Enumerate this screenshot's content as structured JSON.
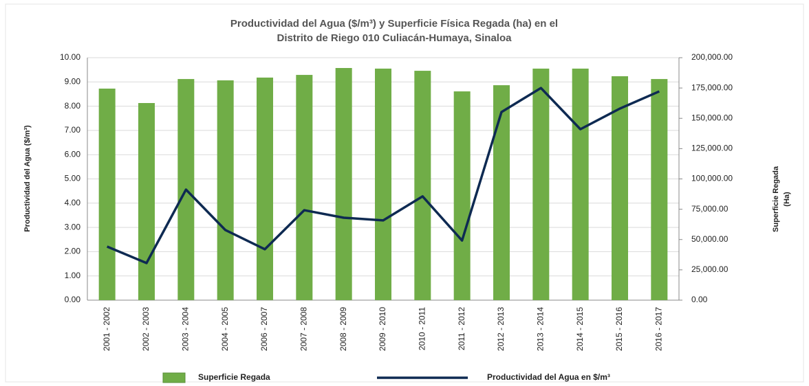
{
  "chart_data": {
    "type": "bar_line",
    "title": [
      "Productividad del Agua  ($/m³) y Superficie Física Regada  (ha)  en el",
      "Distrito de Riego  010 Culiacán-Humaya, Sinaloa"
    ],
    "ylabel": "Productividad del Agua  ($/m³)",
    "y2label": [
      "Superficie  Regada",
      "(Ha)"
    ],
    "categories": [
      "2001 - 2002",
      "2002 - 2003",
      "2003 - 2004",
      "2004 - 2005",
      "2006 - 2007",
      "2007 - 2008",
      "2008 - 2009",
      "2009 - 2010",
      "2010 - 2011",
      "2011 - 2012",
      "2012 - 2013",
      "2013 - 2014",
      "2014 - 2015",
      "2015 - 2016",
      "2016 - 2017"
    ],
    "series": [
      {
        "name": "Superficie Regada",
        "type": "bar",
        "axis": "y2",
        "color": "#70ad47",
        "values": [
          174500,
          162600,
          182400,
          181300,
          183600,
          185800,
          191500,
          191000,
          189200,
          172200,
          177300,
          191000,
          191000,
          184700,
          182400
        ]
      },
      {
        "name": "Productividad del Agua en $/m³",
        "type": "line",
        "axis": "y",
        "color": "#0e2a52",
        "values": [
          2.21,
          1.53,
          4.56,
          2.89,
          2.1,
          3.71,
          3.4,
          3.29,
          4.28,
          2.46,
          7.76,
          8.75,
          7.05,
          7.9,
          8.61
        ]
      }
    ],
    "ylim": [
      0,
      10
    ],
    "yticks": [
      {
        "value": 0,
        "label": "0.00"
      },
      {
        "value": 1,
        "label": "1.00"
      },
      {
        "value": 2,
        "label": "2.00"
      },
      {
        "value": 3,
        "label": "3.00"
      },
      {
        "value": 4,
        "label": "4.00"
      },
      {
        "value": 5,
        "label": "5.00"
      },
      {
        "value": 6,
        "label": "6.00"
      },
      {
        "value": 7,
        "label": "7.00"
      },
      {
        "value": 8,
        "label": "8.00"
      },
      {
        "value": 9,
        "label": "9.00"
      },
      {
        "value": 10,
        "label": "10.00"
      }
    ],
    "y2lim": [
      0,
      200000
    ],
    "y2ticks": [
      {
        "value": 0,
        "label": "0.00"
      },
      {
        "value": 25000,
        "label": "25,000.00"
      },
      {
        "value": 50000,
        "label": "50,000.00"
      },
      {
        "value": 75000,
        "label": "75,000.00"
      },
      {
        "value": 100000,
        "label": "100,000.00"
      },
      {
        "value": 125000,
        "label": "125,000.00"
      },
      {
        "value": 150000,
        "label": "150,000.00"
      },
      {
        "value": 175000,
        "label": "175,000.00"
      },
      {
        "value": 200000,
        "label": "200,000.00"
      }
    ],
    "grid": true
  }
}
